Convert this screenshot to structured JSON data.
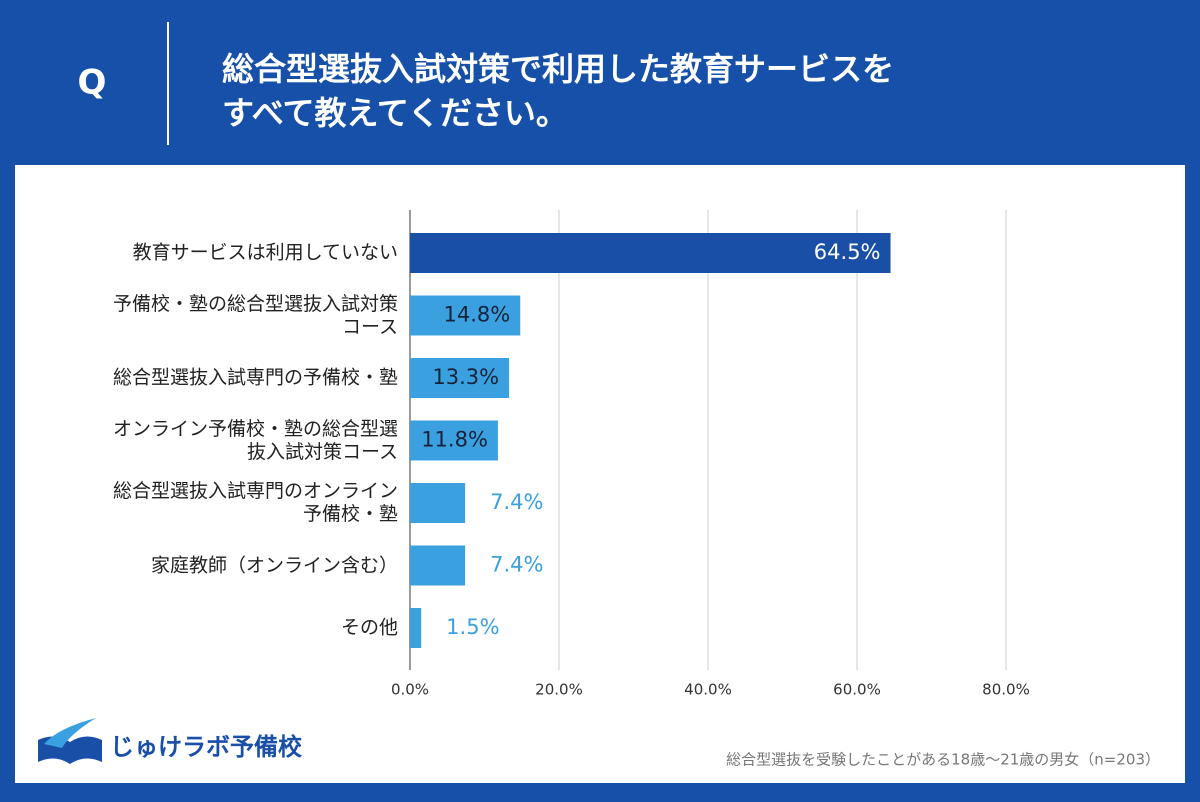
{
  "header": {
    "label": "Q",
    "title_lines": [
      "総合型選抜入試対策で利用した教育サービスを",
      "すべて教えてください。"
    ]
  },
  "brand": "じゅけラボ予備校",
  "note": "総合型選抜を受験したことがある18歳～21歳の男女（n=203）",
  "chart_data": {
    "type": "hbar",
    "categories": [
      "教育サービスは利用していない",
      "予備校・塾の総合型選抜入試対策コース",
      "総合型選抜入試専門の予備校・塾",
      "オンライン予備校・塾の総合型選抜入試対策コース",
      "総合型選抜入試専門のオンライン予備校・塾",
      "家庭教師（オンライン含む）",
      "その他"
    ],
    "values": [
      64.5,
      14.8,
      13.3,
      11.8,
      7.4,
      7.4,
      1.5
    ],
    "value_labels": [
      "64.5%",
      "14.8%",
      "13.3%",
      "11.8%",
      "7.4%",
      "7.4%",
      "1.5%"
    ],
    "colors": [
      "#1a4fa8",
      "#3aa0e0",
      "#3aa0e0",
      "#3aa0e0",
      "#3aa0e0",
      "#3aa0e0",
      "#3aa0e0"
    ],
    "xlim": [
      0,
      100
    ],
    "xticks": [
      {
        "value": 0,
        "label": "0.0%"
      },
      {
        "value": 20,
        "label": "20.0%"
      },
      {
        "value": 40,
        "label": "40.0%"
      },
      {
        "value": 60,
        "label": "60.0%"
      },
      {
        "value": 80,
        "label": "80.0%"
      }
    ],
    "grid": true
  }
}
